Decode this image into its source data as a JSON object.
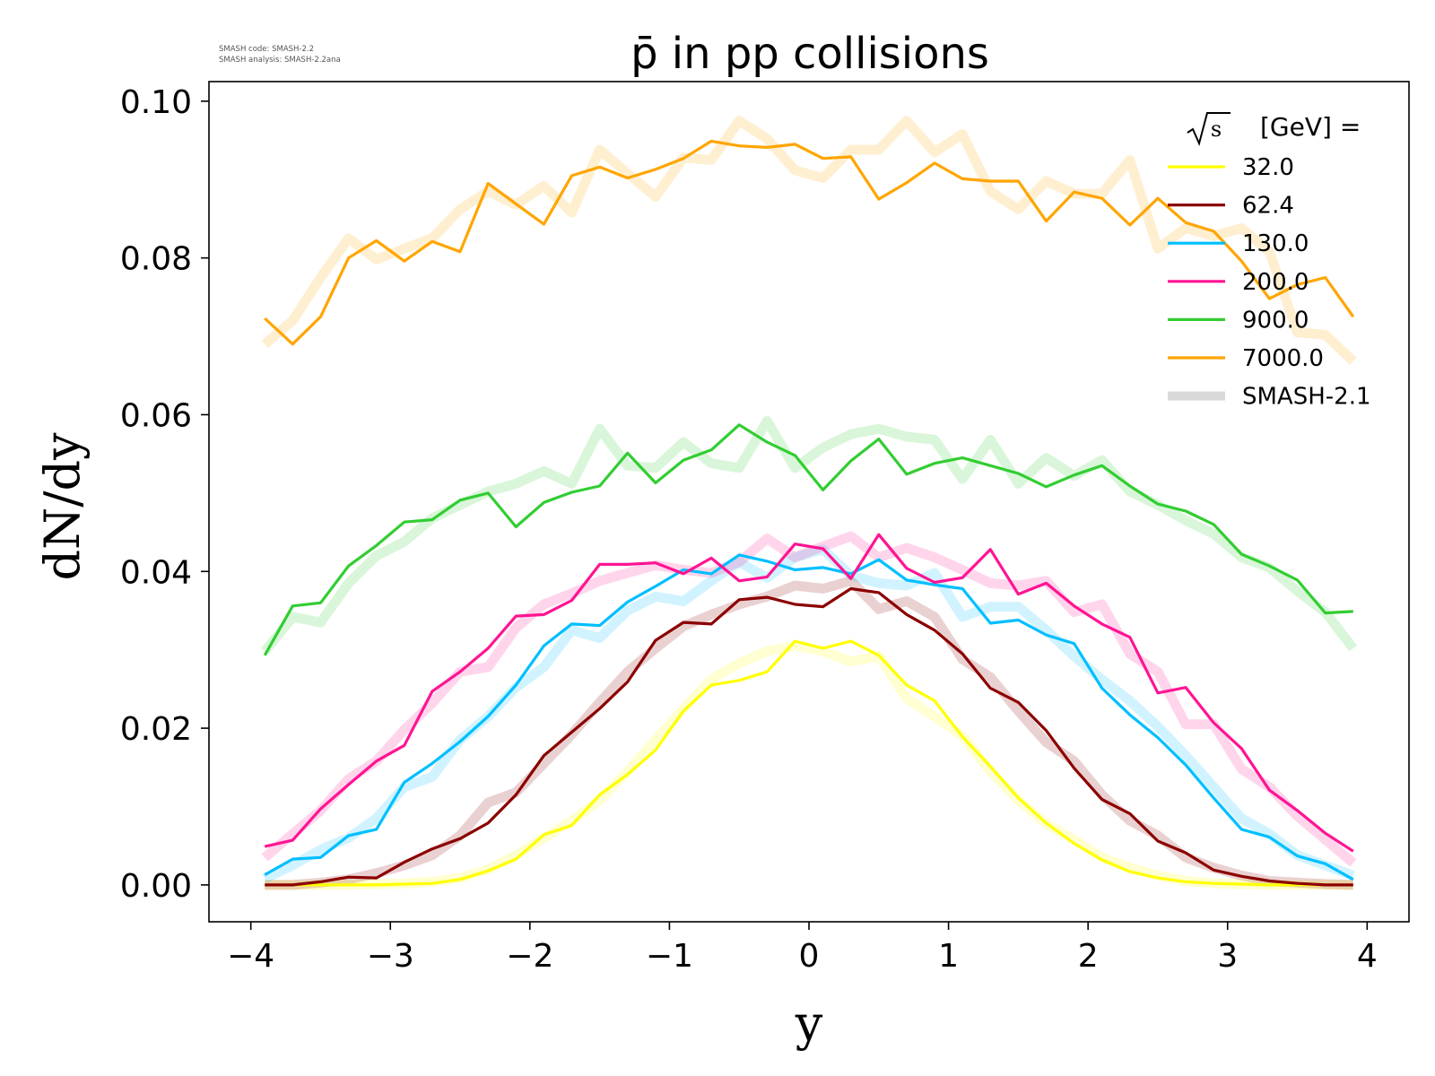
{
  "chart_data": {
    "type": "line",
    "title": "p̄ in pp collisions",
    "xlabel": "y",
    "ylabel": "dN/dy",
    "xlim": [
      -4.3,
      4.3
    ],
    "ylim": [
      -0.0047,
      0.1025
    ],
    "xticks": [
      -4,
      -3,
      -2,
      -1,
      0,
      1,
      2,
      3,
      4
    ],
    "xtick_labels": [
      "−4",
      "−3",
      "−2",
      "−1",
      "0",
      "1",
      "2",
      "3",
      "4"
    ],
    "yticks": [
      0.0,
      0.02,
      0.04,
      0.06,
      0.08,
      0.1
    ],
    "ytick_labels": [
      "0.00",
      "0.02",
      "0.04",
      "0.06",
      "0.08",
      "0.10"
    ],
    "grid": false,
    "legend_position": "top-right",
    "legend_title_sqrt": "s",
    "legend_title": "[GeV] =",
    "code_info": [
      "SMASH code:      SMASH-2.2",
      "SMASH analysis: SMASH-2.2ana"
    ],
    "x": [
      -3.9,
      -3.7,
      -3.5,
      -3.3,
      -3.1,
      -2.9,
      -2.7,
      -2.5,
      -2.3,
      -2.1,
      -1.9,
      -1.7,
      -1.5,
      -1.3,
      -1.1,
      -0.9,
      -0.7,
      -0.5,
      -0.3,
      -0.1,
      0.1,
      0.3,
      0.5,
      0.7,
      0.9,
      1.1,
      1.3,
      1.5,
      1.7,
      1.9,
      2.1,
      2.3,
      2.5,
      2.7,
      2.9,
      3.1,
      3.3,
      3.5,
      3.7,
      3.9
    ],
    "series": [
      {
        "name": "32.0",
        "color": "#ffff00",
        "values": [
          0.0,
          0.0,
          0.0,
          0.0,
          0.0,
          0.0001,
          0.0002,
          0.0007,
          0.0018,
          0.0033,
          0.0064,
          0.0076,
          0.0115,
          0.0141,
          0.0172,
          0.0222,
          0.0255,
          0.0261,
          0.0272,
          0.0311,
          0.0302,
          0.0311,
          0.0293,
          0.0255,
          0.0235,
          0.0189,
          0.0151,
          0.0111,
          0.0079,
          0.0053,
          0.0032,
          0.0017,
          0.0009,
          0.0004,
          0.0002,
          0.0001,
          0.0,
          0.0,
          0.0,
          0.0
        ]
      },
      {
        "name": "62.4",
        "color": "#8b0000",
        "values": [
          0.0,
          0.0,
          0.0004,
          0.001,
          0.0009,
          0.0029,
          0.0046,
          0.0059,
          0.0079,
          0.0115,
          0.0165,
          0.0195,
          0.0225,
          0.0259,
          0.0312,
          0.0335,
          0.0333,
          0.0364,
          0.0367,
          0.0358,
          0.0355,
          0.0378,
          0.0373,
          0.0345,
          0.0325,
          0.0295,
          0.0251,
          0.0233,
          0.0197,
          0.0149,
          0.0109,
          0.0091,
          0.0056,
          0.0041,
          0.0019,
          0.0011,
          0.0005,
          0.0002,
          0.0,
          0.0
        ]
      },
      {
        "name": "130.0",
        "color": "#00bfff",
        "values": [
          0.0013,
          0.0033,
          0.0035,
          0.0063,
          0.0071,
          0.0131,
          0.0155,
          0.0183,
          0.0215,
          0.0255,
          0.0305,
          0.0333,
          0.0331,
          0.0361,
          0.0381,
          0.0402,
          0.0397,
          0.0421,
          0.0413,
          0.0402,
          0.0405,
          0.0397,
          0.0415,
          0.0389,
          0.0383,
          0.0378,
          0.0334,
          0.0338,
          0.0319,
          0.0308,
          0.0251,
          0.0217,
          0.0188,
          0.0153,
          0.0111,
          0.0071,
          0.0061,
          0.0037,
          0.0027,
          0.0007
        ]
      },
      {
        "name": "200.0",
        "color": "#ff1493",
        "values": [
          0.0049,
          0.0057,
          0.0097,
          0.0128,
          0.0158,
          0.0178,
          0.0247,
          0.0272,
          0.0302,
          0.0343,
          0.0345,
          0.0363,
          0.0409,
          0.0409,
          0.0411,
          0.0397,
          0.0417,
          0.0388,
          0.0393,
          0.0435,
          0.0429,
          0.0391,
          0.0447,
          0.0404,
          0.0386,
          0.0392,
          0.0428,
          0.0371,
          0.0385,
          0.0356,
          0.0333,
          0.0316,
          0.0245,
          0.0252,
          0.0207,
          0.0174,
          0.0121,
          0.0095,
          0.0066,
          0.0043
        ]
      },
      {
        "name": "900.0",
        "color": "#32cd32",
        "values": [
          0.0293,
          0.0356,
          0.036,
          0.0407,
          0.0433,
          0.0463,
          0.0466,
          0.0491,
          0.05,
          0.0457,
          0.0488,
          0.0501,
          0.0509,
          0.0551,
          0.0513,
          0.0542,
          0.0555,
          0.0587,
          0.0565,
          0.0548,
          0.0504,
          0.0541,
          0.0569,
          0.0524,
          0.0538,
          0.0545,
          0.0535,
          0.0525,
          0.0508,
          0.0523,
          0.0535,
          0.0509,
          0.0486,
          0.0477,
          0.046,
          0.0422,
          0.0407,
          0.0389,
          0.0347,
          0.0349
        ]
      },
      {
        "name": "7000.0",
        "color": "#ffa500",
        "values": [
          0.0723,
          0.069,
          0.0725,
          0.08,
          0.0822,
          0.0796,
          0.0821,
          0.0808,
          0.0895,
          0.0869,
          0.0843,
          0.0905,
          0.0916,
          0.0902,
          0.0913,
          0.0927,
          0.0949,
          0.0943,
          0.0941,
          0.0945,
          0.0927,
          0.0929,
          0.0875,
          0.0896,
          0.0921,
          0.0901,
          0.0898,
          0.0898,
          0.0847,
          0.0884,
          0.0876,
          0.0842,
          0.0876,
          0.0845,
          0.0834,
          0.0796,
          0.0748,
          0.0766,
          0.0775,
          0.0725
        ]
      }
    ],
    "reference": {
      "name": "SMASH-2.1",
      "legend_color": "#d9d9d9",
      "series": [
        {
          "color": "#ffff00",
          "values": [
            0.0,
            0.0,
            0.0,
            0.0,
            0.0001,
            0.0002,
            0.0004,
            0.0009,
            0.002,
            0.0038,
            0.006,
            0.0082,
            0.0108,
            0.0145,
            0.0185,
            0.0225,
            0.0262,
            0.0283,
            0.0298,
            0.0305,
            0.0298,
            0.0285,
            0.0292,
            0.0238,
            0.0215,
            0.019,
            0.0145,
            0.0108,
            0.0078,
            0.0058,
            0.0035,
            0.0022,
            0.0012,
            0.0005,
            0.0002,
            0.0001,
            0.0,
            0.0,
            0.0,
            0.0
          ]
        },
        {
          "color": "#8b0000",
          "values": [
            0.0,
            0.0,
            0.0003,
            0.0007,
            0.0015,
            0.0025,
            0.0038,
            0.0063,
            0.0105,
            0.0118,
            0.0155,
            0.0192,
            0.0233,
            0.0272,
            0.0302,
            0.033,
            0.0345,
            0.0358,
            0.0368,
            0.0382,
            0.0378,
            0.0388,
            0.0352,
            0.0362,
            0.0342,
            0.0288,
            0.0265,
            0.0222,
            0.0182,
            0.0158,
            0.0115,
            0.0082,
            0.0063,
            0.0035,
            0.0022,
            0.0012,
            0.0005,
            0.0003,
            0.0001,
            0.0
          ]
        },
        {
          "color": "#00bfff",
          "values": [
            0.0008,
            0.0025,
            0.0045,
            0.006,
            0.0085,
            0.0125,
            0.0138,
            0.0185,
            0.0215,
            0.0252,
            0.0278,
            0.0325,
            0.0315,
            0.035,
            0.0368,
            0.0362,
            0.0388,
            0.0412,
            0.0392,
            0.0418,
            0.0428,
            0.0395,
            0.0385,
            0.0382,
            0.0398,
            0.0342,
            0.0355,
            0.0355,
            0.0325,
            0.0292,
            0.0262,
            0.0235,
            0.0202,
            0.0165,
            0.0125,
            0.0085,
            0.0065,
            0.0038,
            0.0025,
            0.0012
          ]
        },
        {
          "color": "#ff1493",
          "values": [
            0.0035,
            0.0065,
            0.0095,
            0.0135,
            0.0158,
            0.0198,
            0.0232,
            0.0272,
            0.0278,
            0.0328,
            0.0358,
            0.0372,
            0.0388,
            0.0398,
            0.0408,
            0.0402,
            0.0398,
            0.0412,
            0.0442,
            0.0418,
            0.0432,
            0.0445,
            0.0418,
            0.043,
            0.0418,
            0.0402,
            0.0385,
            0.0382,
            0.0388,
            0.0348,
            0.0358,
            0.0295,
            0.0272,
            0.0205,
            0.0205,
            0.0148,
            0.0125,
            0.0088,
            0.0058,
            0.0028
          ]
        },
        {
          "color": "#32cd32",
          "values": [
            0.0298,
            0.0342,
            0.0335,
            0.0385,
            0.042,
            0.0438,
            0.0468,
            0.0485,
            0.0502,
            0.0512,
            0.0528,
            0.0512,
            0.0582,
            0.0535,
            0.0532,
            0.0565,
            0.0538,
            0.0532,
            0.0592,
            0.0532,
            0.0558,
            0.0575,
            0.0582,
            0.0572,
            0.0568,
            0.0518,
            0.0568,
            0.0512,
            0.0545,
            0.0522,
            0.0542,
            0.0502,
            0.0485,
            0.0465,
            0.0448,
            0.0418,
            0.0405,
            0.0375,
            0.0348,
            0.0302
          ]
        },
        {
          "color": "#ffa500",
          "values": [
            0.069,
            0.072,
            0.0775,
            0.0825,
            0.0798,
            0.0812,
            0.0825,
            0.0862,
            0.0885,
            0.0868,
            0.0892,
            0.0858,
            0.0938,
            0.0908,
            0.0878,
            0.0928,
            0.0925,
            0.0975,
            0.0952,
            0.0912,
            0.0902,
            0.0938,
            0.0938,
            0.0975,
            0.0935,
            0.0958,
            0.0885,
            0.0862,
            0.0898,
            0.0882,
            0.0882,
            0.0925,
            0.0812,
            0.0838,
            0.0828,
            0.0838,
            0.0808,
            0.0705,
            0.0702,
            0.0668
          ]
        }
      ]
    }
  }
}
